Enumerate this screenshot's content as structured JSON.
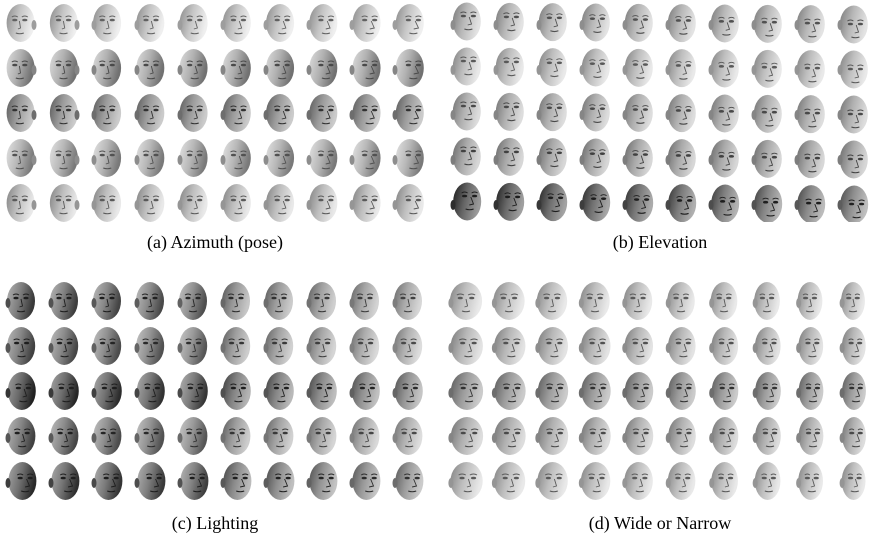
{
  "panels": [
    {
      "id": "a",
      "caption": "(a) Azimuth (pose)",
      "variation": "azimuth"
    },
    {
      "id": "b",
      "caption": "(b) Elevation",
      "variation": "elevation"
    },
    {
      "id": "c",
      "caption": "(c) Lighting",
      "variation": "lighting"
    },
    {
      "id": "d",
      "caption": "(d) Wide or Narrow",
      "variation": "width"
    }
  ],
  "grid": {
    "rows": 5,
    "cols": 10
  }
}
